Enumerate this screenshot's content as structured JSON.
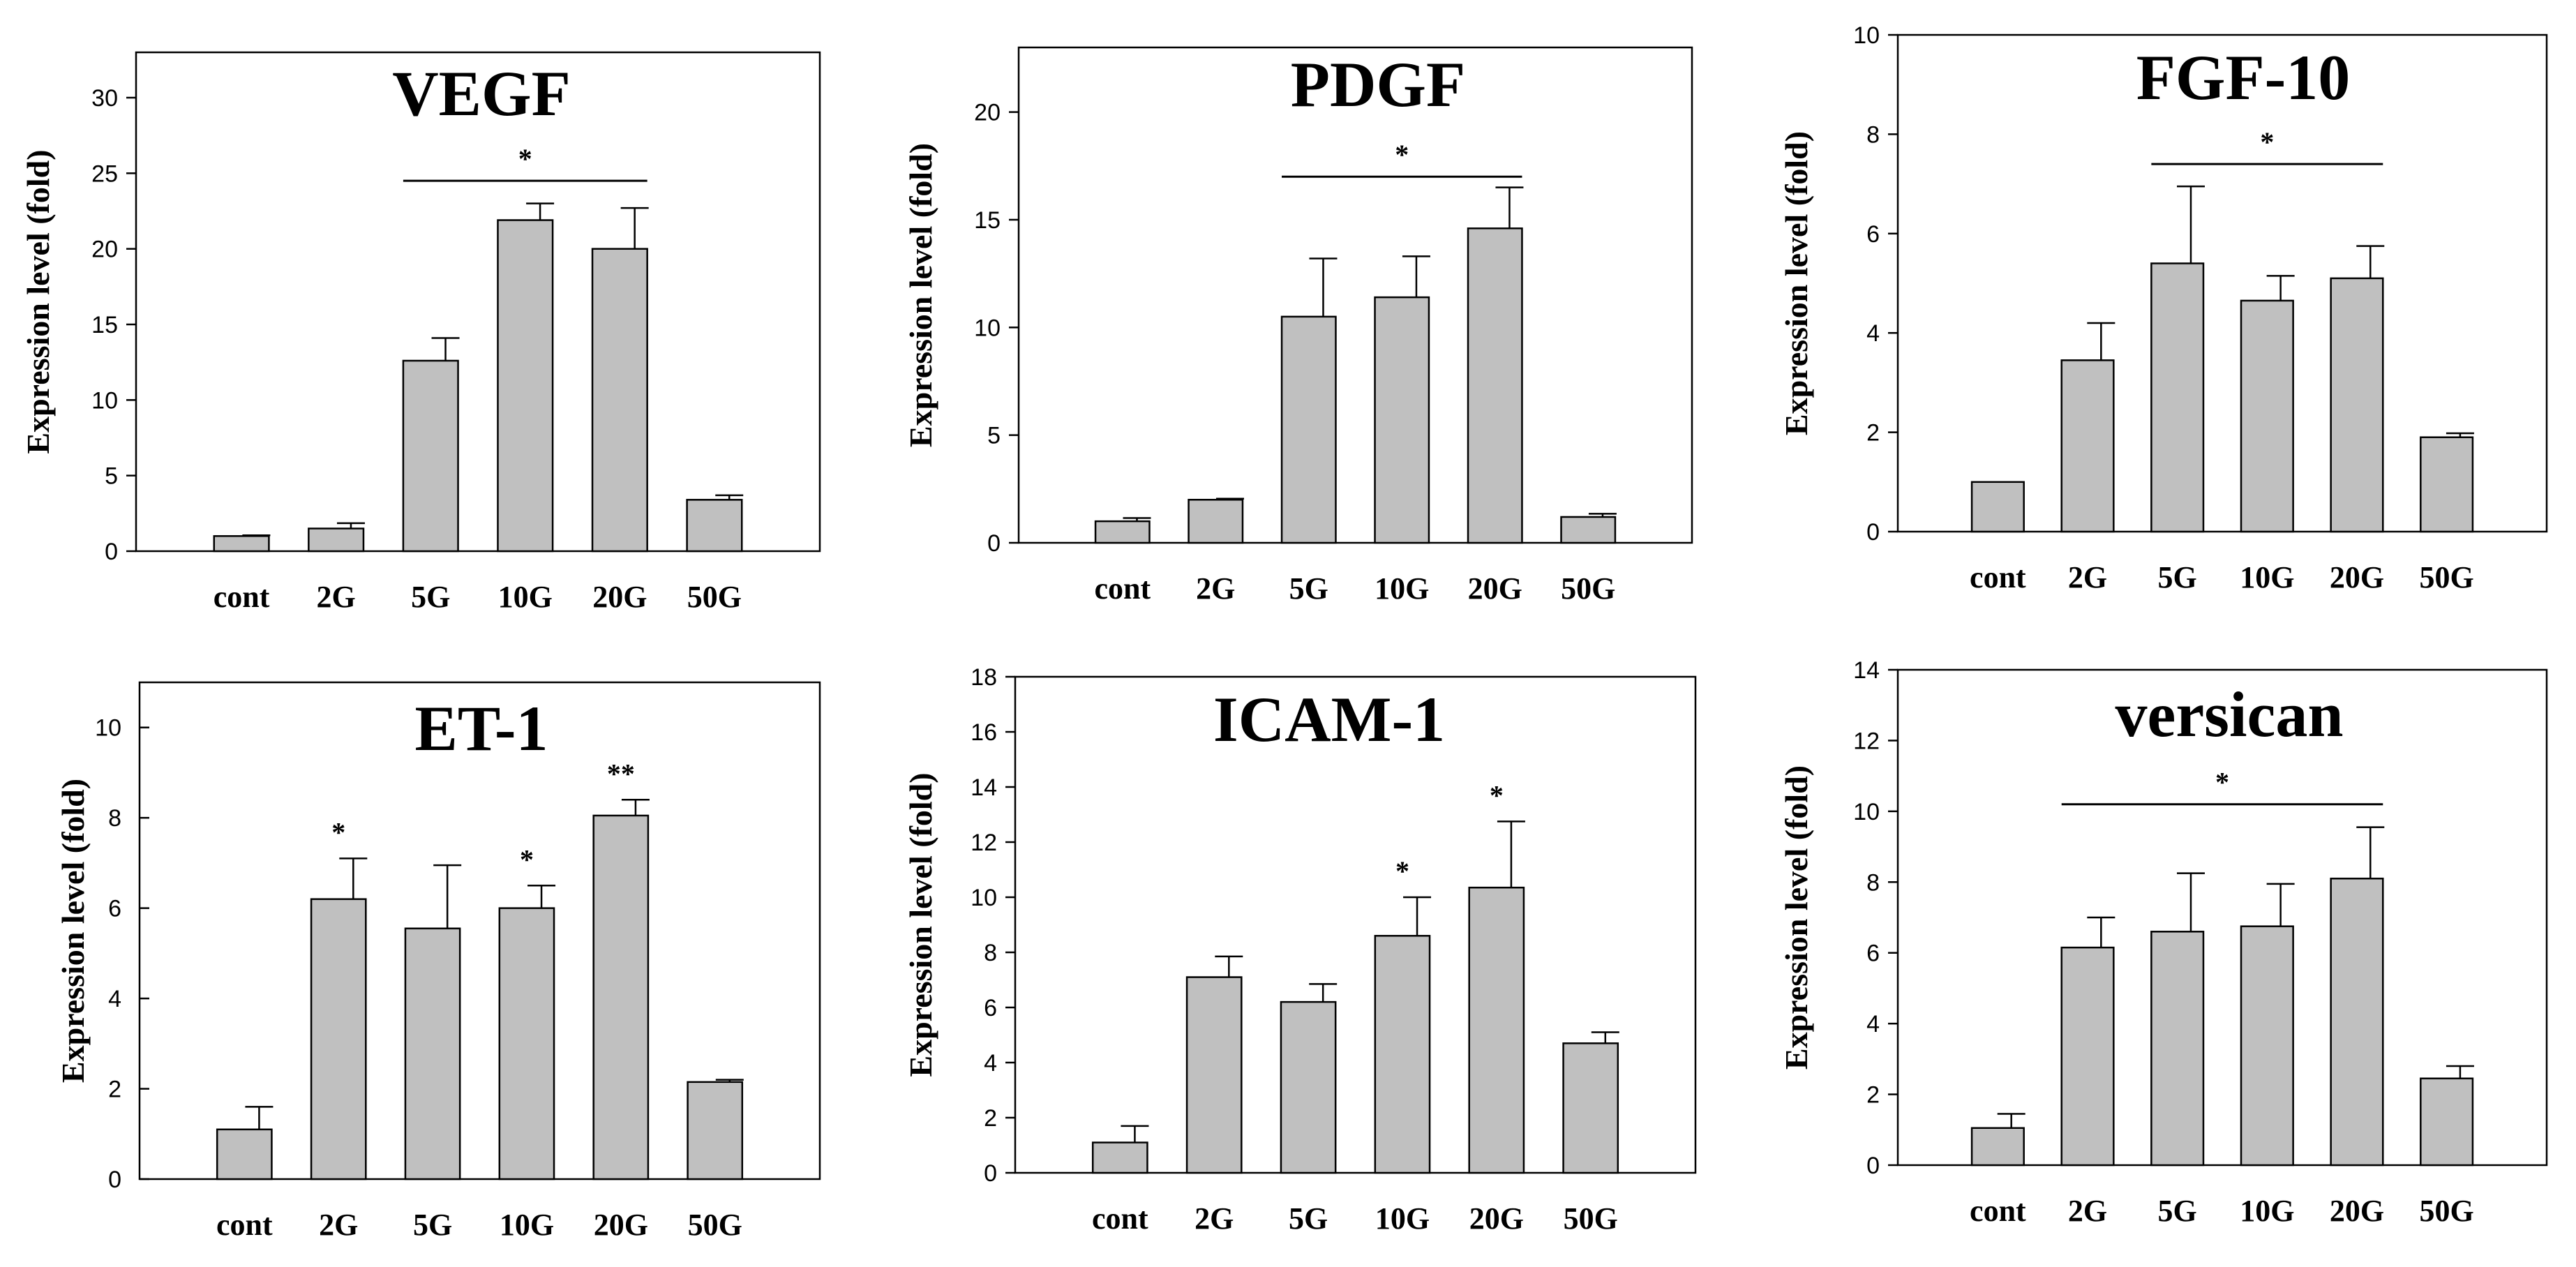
{
  "chart_data": [
    {
      "type": "bar",
      "title": "VEGF",
      "ylabel": "Expression level (fold)",
      "categories": [
        "cont",
        "2G",
        "5G",
        "10G",
        "20G",
        "50G"
      ],
      "values": [
        1.0,
        1.5,
        12.6,
        21.9,
        20.0,
        3.4
      ],
      "errors": [
        0.05,
        0.35,
        1.5,
        1.1,
        2.7,
        0.3
      ],
      "ylim": [
        0,
        33
      ],
      "yticks": [
        "0",
        "5",
        "10",
        "15",
        "20",
        "25",
        "30"
      ],
      "significance": [
        {
          "label": "*",
          "from": "5G",
          "to": "20G",
          "y": 24.5
        }
      ]
    },
    {
      "type": "bar",
      "title": "PDGF",
      "ylabel": "Expression level (fold)",
      "categories": [
        "cont",
        "2G",
        "5G",
        "10G",
        "20G",
        "50G"
      ],
      "values": [
        1.0,
        2.0,
        10.5,
        11.4,
        14.6,
        1.2
      ],
      "errors": [
        0.15,
        0.05,
        2.7,
        1.9,
        1.9,
        0.15
      ],
      "ylim": [
        0,
        23
      ],
      "yticks": [
        "0",
        "5",
        "10",
        "15",
        "20"
      ],
      "significance": [
        {
          "label": "*",
          "from": "5G",
          "to": "20G",
          "y": 17.0
        }
      ]
    },
    {
      "type": "bar",
      "title": "FGF-10",
      "ylabel": "Expression level (fold)",
      "categories": [
        "cont",
        "2G",
        "5G",
        "10G",
        "20G",
        "50G"
      ],
      "values": [
        1.0,
        3.45,
        5.4,
        4.65,
        5.1,
        1.9
      ],
      "errors": [
        0.0,
        0.75,
        1.55,
        0.5,
        0.65,
        0.08
      ],
      "ylim": [
        0,
        10
      ],
      "yticks": [
        "0",
        "2",
        "4",
        "6",
        "8",
        "10"
      ],
      "significance": [
        {
          "label": "*",
          "from": "5G",
          "to": "20G",
          "y": 7.4
        }
      ]
    },
    {
      "type": "bar",
      "title": "ET-1",
      "ylabel": "Expression level (fold)",
      "categories": [
        "cont",
        "2G",
        "5G",
        "10G",
        "20G",
        "50G"
      ],
      "values": [
        1.1,
        6.2,
        5.55,
        6.0,
        8.05,
        2.15
      ],
      "errors": [
        0.5,
        0.9,
        1.4,
        0.5,
        0.35,
        0.05
      ],
      "ylim": [
        0,
        11
      ],
      "yticks": [
        "0",
        "2",
        "4",
        "6",
        "8",
        "10"
      ],
      "stars": [
        {
          "category": "2G",
          "label": "*"
        },
        {
          "category": "10G",
          "label": "*"
        },
        {
          "category": "20G",
          "label": "**"
        }
      ]
    },
    {
      "type": "bar",
      "title": "ICAM-1",
      "ylabel": "Expression level (fold)",
      "categories": [
        "cont",
        "2G",
        "5G",
        "10G",
        "20G",
        "50G"
      ],
      "values": [
        1.1,
        7.1,
        6.2,
        8.6,
        10.35,
        4.7
      ],
      "errors": [
        0.6,
        0.75,
        0.65,
        1.4,
        2.4,
        0.4
      ],
      "ylim": [
        0,
        18
      ],
      "yticks": [
        "0",
        "2",
        "4",
        "6",
        "8",
        "10",
        "12",
        "14",
        "16",
        "18"
      ],
      "stars": [
        {
          "category": "10G",
          "label": "*"
        },
        {
          "category": "20G",
          "label": "*"
        }
      ]
    },
    {
      "type": "bar",
      "title": "versican",
      "ylabel": "Expression level (fold)",
      "categories": [
        "cont",
        "2G",
        "5G",
        "10G",
        "20G",
        "50G"
      ],
      "values": [
        1.05,
        6.15,
        6.6,
        6.75,
        8.1,
        2.45
      ],
      "errors": [
        0.4,
        0.85,
        1.65,
        1.2,
        1.45,
        0.35
      ],
      "ylim": [
        0,
        14
      ],
      "yticks": [
        "0",
        "2",
        "4",
        "6",
        "8",
        "10",
        "12",
        "14"
      ],
      "significance": [
        {
          "label": "*",
          "from": "2G",
          "to": "20G",
          "y": 10.2
        }
      ]
    }
  ]
}
